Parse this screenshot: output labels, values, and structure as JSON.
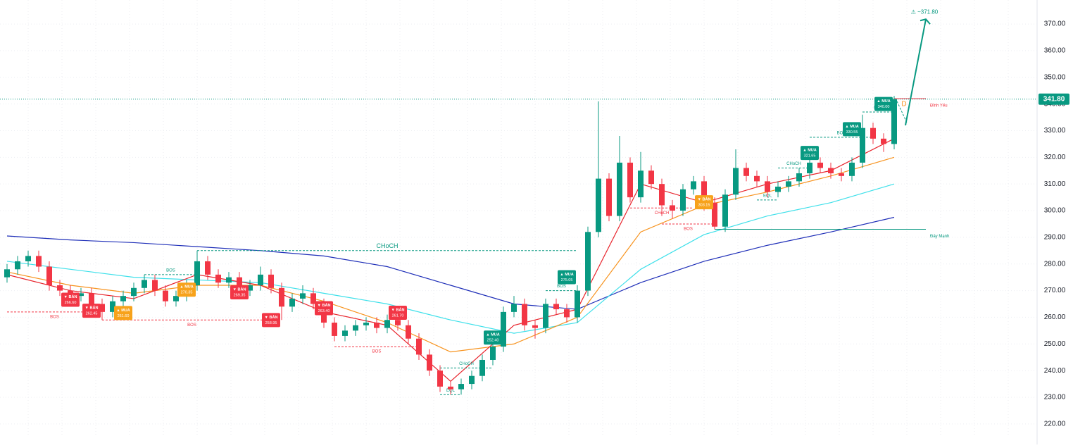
{
  "chart_data": {
    "type": "candlestick",
    "ylim": [
      215.2,
      379
    ],
    "yticks": [
      {
        "value": 220,
        "label": "220.00"
      },
      {
        "value": 230,
        "label": "230.00"
      },
      {
        "value": 240,
        "label": "240.00"
      },
      {
        "value": 250,
        "label": "250.00"
      },
      {
        "value": 260,
        "label": "260.00"
      },
      {
        "value": 270,
        "label": "270.00"
      },
      {
        "value": 280,
        "label": "280.00"
      },
      {
        "value": 290,
        "label": "290.00"
      },
      {
        "value": 300,
        "label": "300.00"
      },
      {
        "value": 310,
        "label": "310.00"
      },
      {
        "value": 320,
        "label": "320.00"
      },
      {
        "value": 330,
        "label": "330.00"
      },
      {
        "value": 340,
        "label": "340.00"
      },
      {
        "value": 350,
        "label": "350.00"
      },
      {
        "value": 360,
        "label": "360.00"
      },
      {
        "value": 370,
        "label": "370.00"
      }
    ],
    "grid": true,
    "up_color": "#089981",
    "down_color": "#f23645",
    "candles": {
      "open": [
        275,
        278,
        281,
        283,
        279,
        272,
        270,
        268,
        269,
        265,
        262,
        266,
        268,
        271,
        274,
        270,
        266,
        268,
        272,
        281,
        276,
        273,
        275,
        270,
        272,
        276,
        271,
        264,
        267,
        269,
        265,
        258,
        253,
        255,
        257,
        258,
        256,
        259,
        257,
        252,
        246,
        240,
        234,
        233,
        235,
        238,
        244,
        249,
        262,
        265,
        257,
        256,
        265,
        263,
        260,
        270,
        292,
        312,
        298,
        318,
        305,
        315,
        310,
        302,
        300,
        308,
        311,
        303,
        294,
        306,
        316,
        313,
        311,
        307,
        309,
        311,
        314,
        318,
        316,
        314,
        313,
        318,
        331,
        327,
        325
      ],
      "high": [
        280,
        283,
        285,
        285,
        281,
        274,
        272,
        271,
        271,
        267,
        268,
        270,
        273,
        276,
        276,
        272,
        270,
        274,
        285,
        283,
        278,
        277,
        277,
        274,
        279,
        278,
        273,
        269,
        272,
        271,
        267,
        260,
        257,
        259,
        260,
        260,
        261,
        261,
        259,
        254,
        248,
        242,
        236,
        237,
        240,
        246,
        251,
        264,
        268,
        267,
        259,
        267,
        267,
        265,
        272,
        294,
        341,
        314,
        328,
        320,
        322,
        317,
        312,
        304,
        310,
        313,
        313,
        305,
        308,
        323,
        318,
        315,
        313,
        311,
        313,
        316,
        322,
        320,
        318,
        316,
        320,
        336,
        333,
        329,
        343
      ],
      "low": [
        273,
        276,
        279,
        277,
        270,
        268,
        266,
        266,
        263,
        259,
        260,
        264,
        266,
        269,
        268,
        264,
        264,
        266,
        270,
        274,
        271,
        271,
        268,
        268,
        270,
        269,
        259,
        262,
        265,
        263,
        256,
        251,
        251,
        253,
        255,
        254,
        254,
        255,
        250,
        244,
        238,
        232,
        231,
        231,
        233,
        236,
        242,
        247,
        260,
        255,
        252,
        254,
        261,
        258,
        258,
        268,
        290,
        296,
        296,
        303,
        303,
        308,
        298,
        297,
        298,
        306,
        300,
        293,
        292,
        304,
        311,
        309,
        305,
        305,
        307,
        309,
        312,
        314,
        312,
        311,
        311,
        316,
        325,
        322,
        323
      ],
      "close": [
        278,
        281,
        283,
        279,
        272,
        270,
        268,
        269,
        265,
        262,
        266,
        268,
        271,
        274,
        270,
        266,
        268,
        272,
        281,
        276,
        273,
        275,
        270,
        272,
        276,
        271,
        264,
        267,
        269,
        265,
        258,
        253,
        255,
        257,
        258,
        256,
        259,
        257,
        252,
        246,
        240,
        234,
        233,
        235,
        238,
        244,
        249,
        262,
        265,
        257,
        256,
        265,
        263,
        260,
        270,
        292,
        312,
        298,
        318,
        305,
        315,
        310,
        302,
        300,
        308,
        311,
        303,
        294,
        306,
        316,
        313,
        311,
        307,
        309,
        311,
        314,
        318,
        316,
        314,
        313,
        318,
        331,
        327,
        325,
        341.8
      ]
    },
    "moving_averages": {
      "x": [
        0,
        6,
        12,
        18,
        24,
        30,
        36,
        42,
        48,
        54,
        60,
        66,
        72,
        78,
        84
      ],
      "series": [
        {
          "color": "#1f2fb8",
          "values": [
            290.5,
            289,
            288,
            286.5,
            285,
            283,
            279,
            272,
            265,
            263,
            273,
            281,
            287,
            292,
            297.5
          ]
        },
        {
          "color": "#3ee0ea",
          "values": [
            281,
            278,
            275,
            274,
            273,
            269,
            265,
            259,
            254,
            258,
            278,
            291,
            298,
            303,
            310
          ]
        },
        {
          "color": "#f7931e",
          "values": [
            277,
            272,
            269,
            272,
            272,
            266,
            258,
            247,
            250,
            260,
            292,
            302,
            307,
            313,
            320
          ]
        },
        {
          "color": "#e8242c",
          "values": [
            276,
            270,
            267,
            276,
            272,
            262,
            257,
            236,
            257,
            263,
            310,
            303,
            310,
            315,
            327
          ]
        }
      ]
    },
    "structures": [
      {
        "label": "BOS",
        "level": 262,
        "from": 0,
        "to": 9,
        "color": "#f23645"
      },
      {
        "label": "BOS",
        "level": 259,
        "from": 9,
        "to": 26,
        "color": "#f23645"
      },
      {
        "label": "BOS",
        "level": 276,
        "from": 13,
        "to": 18,
        "color": "#089981"
      },
      {
        "label": "CHoCH",
        "level": 285,
        "from": 18,
        "to": 54,
        "color": "#089981"
      },
      {
        "label": "BOS",
        "level": 249,
        "from": 31,
        "to": 39,
        "color": "#f23645"
      },
      {
        "label": "CHoCH",
        "level": 241,
        "from": 41,
        "to": 46,
        "color": "#089981"
      },
      {
        "label": "EQL",
        "level": 231,
        "from": 41,
        "to": 43,
        "color": "#089981"
      },
      {
        "label": "BOS",
        "level": 270,
        "from": 51,
        "to": 54,
        "color": "#089981"
      },
      {
        "label": "CHoCH",
        "level": 301,
        "from": 59,
        "to": 65,
        "color": "#f23645"
      },
      {
        "label": "BOS",
        "level": 295,
        "from": 62,
        "to": 67,
        "color": "#f23645"
      },
      {
        "label": "EQL",
        "level": 304,
        "from": 71,
        "to": 73,
        "color": "#089981"
      },
      {
        "label": "CHoCH",
        "level": 316,
        "from": 73,
        "to": 76,
        "color": "#089981"
      },
      {
        "label": "BOS",
        "level": 327.5,
        "from": 76,
        "to": 82,
        "color": "#089981"
      },
      {
        "label": "BOS",
        "level": 337,
        "from": 81,
        "to": 84,
        "color": "#089981"
      },
      {
        "label": "Đáy Mạnh",
        "level": 293,
        "from": 67,
        "to": 87,
        "color": "#089981"
      },
      {
        "label": "Đỉnh Yếu",
        "level": 342,
        "from": 84,
        "to": 87,
        "color": "#f23645"
      }
    ],
    "signals": {
      "texts": [
        "▼ BÁN",
        "▼ BÁN",
        "▲ MUA",
        "▲ MUA",
        "▼ BÁN",
        "▼ BÁN",
        "▼ BÁN",
        "▼ BÁN",
        "▲ MUA",
        "▲ MUA",
        "▼ BÁN",
        "▲ MUA",
        "▲ MUA",
        "▲ MUA"
      ],
      "index": [
        6,
        8,
        11,
        17,
        22,
        25,
        30,
        37,
        46,
        53,
        66,
        76,
        80,
        83
      ],
      "values": [
        266.6,
        262.45,
        261.6,
        270.35,
        269.35,
        258.95,
        263.4,
        261.7,
        252.4,
        275.05,
        303.15,
        321.65,
        330.55,
        340
      ],
      "value_labels": [
        "266.60",
        "262.45",
        "261.60",
        "270.35",
        "269.35",
        "258.95",
        "263.40",
        "261.70",
        "252.40",
        "275.05",
        "303.15",
        "321.65",
        "330.55",
        "340.00"
      ],
      "colors": [
        "#f23645",
        "#f23645",
        "#f7a21b",
        "#f7a21b",
        "#f23645",
        "#f23645",
        "#f23645",
        "#f23645",
        "#089981",
        "#089981",
        "#f7a21b",
        "#089981",
        "#089981",
        "#089981"
      ]
    },
    "last_price": {
      "value": 341.8,
      "label": "341.80"
    },
    "target": {
      "value": 371.8,
      "label": "⚠ ~371.80"
    },
    "pattern_label": "D"
  }
}
